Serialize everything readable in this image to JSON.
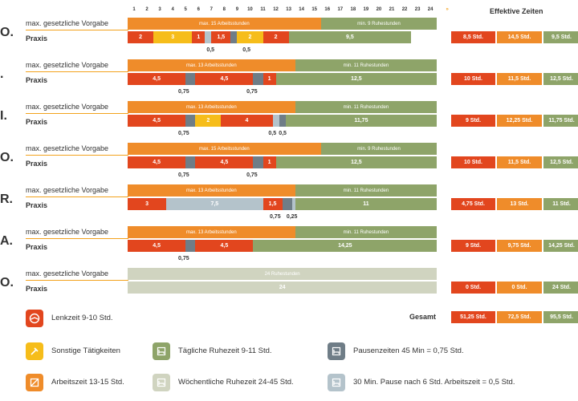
{
  "hours": [
    "1",
    "2",
    "3",
    "4",
    "5",
    "6",
    "7",
    "8",
    "9",
    "10",
    "11",
    "12",
    "13",
    "14",
    "15",
    "16",
    "17",
    "18",
    "19",
    "20",
    "21",
    "22",
    "23",
    "24"
  ],
  "hour_separator": "»",
  "effektive_title": "Effektive Zeiten",
  "label_vorgabe": "max. gesetzliche Vorgabe",
  "label_praxis": "Praxis",
  "days": [
    {
      "abbr": "O.",
      "top": 22,
      "vorgabe": [
        {
          "text": "max. 15 Arbeitsstunden",
          "w": 15,
          "c": "c-org"
        },
        {
          "text": "min. 9 Ruhestunden",
          "w": 9,
          "c": "c-grn"
        }
      ],
      "praxis": [
        {
          "text": "2",
          "w": 2,
          "c": "c-red"
        },
        {
          "text": "3",
          "w": 3,
          "c": "c-yel"
        },
        {
          "text": "1",
          "w": 1,
          "c": "c-red"
        },
        {
          "text": "",
          "w": 0.5,
          "c": "c-lgy"
        },
        {
          "text": "1,5",
          "w": 1.5,
          "c": "c-red"
        },
        {
          "text": "",
          "w": 0.5,
          "c": "c-gry"
        },
        {
          "text": "2",
          "w": 2,
          "c": "c-yel"
        },
        {
          "text": "2",
          "w": 2,
          "c": "c-red"
        },
        {
          "text": "9,5",
          "w": 9.5,
          "c": "c-grn"
        }
      ],
      "pausen": [
        {
          "text": "0,5",
          "at": 6.5
        },
        {
          "text": "0,5",
          "at": 9.3
        }
      ],
      "eff": [
        "8,5 Std.",
        "14,5 Std.",
        "9,5 Std."
      ]
    },
    {
      "abbr": ".",
      "top": 74,
      "vorgabe": [
        {
          "text": "max. 13 Arbeitsstunden",
          "w": 13,
          "c": "c-org"
        },
        {
          "text": "min. 11 Ruhestunden",
          "w": 11,
          "c": "c-grn"
        }
      ],
      "praxis": [
        {
          "text": "4,5",
          "w": 4.5,
          "c": "c-red"
        },
        {
          "text": "",
          "w": 0.75,
          "c": "c-gry"
        },
        {
          "text": "4,5",
          "w": 4.5,
          "c": "c-red"
        },
        {
          "text": "",
          "w": 0.75,
          "c": "c-gry"
        },
        {
          "text": "1",
          "w": 1,
          "c": "c-red"
        },
        {
          "text": "12,5",
          "w": 12.5,
          "c": "c-grn"
        }
      ],
      "pausen": [
        {
          "text": "0,75",
          "at": 4.3
        },
        {
          "text": "0,75",
          "at": 9.6
        }
      ],
      "eff": [
        "10 Std.",
        "11,5 Std.",
        "12,5 Std."
      ]
    },
    {
      "abbr": "I.",
      "top": 126,
      "vorgabe": [
        {
          "text": "max. 13 Arbeitsstunden",
          "w": 13,
          "c": "c-org"
        },
        {
          "text": "min. 11 Ruhestunden",
          "w": 11,
          "c": "c-grn"
        }
      ],
      "praxis": [
        {
          "text": "4,5",
          "w": 4.5,
          "c": "c-red"
        },
        {
          "text": "",
          "w": 0.75,
          "c": "c-gry"
        },
        {
          "text": "2",
          "w": 2,
          "c": "c-yel"
        },
        {
          "text": "4",
          "w": 4,
          "c": "c-red"
        },
        {
          "text": "",
          "w": 0.5,
          "c": "c-lgy"
        },
        {
          "text": "",
          "w": 0.5,
          "c": "c-gry"
        },
        {
          "text": "11,75",
          "w": 11.75,
          "c": "c-grn"
        }
      ],
      "pausen": [
        {
          "text": "0,75",
          "at": 4.3
        },
        {
          "text": "0,5",
          "at": 11.3
        },
        {
          "text": "0,5",
          "at": 12.1
        }
      ],
      "eff": [
        "9 Std.",
        "12,25 Std.",
        "11,75 Std."
      ]
    },
    {
      "abbr": "O.",
      "top": 178,
      "vorgabe": [
        {
          "text": "max. 15 Arbeitsstunden",
          "w": 15,
          "c": "c-org"
        },
        {
          "text": "min. 9 Ruhestunden",
          "w": 9,
          "c": "c-grn"
        }
      ],
      "praxis": [
        {
          "text": "4,5",
          "w": 4.5,
          "c": "c-red"
        },
        {
          "text": "",
          "w": 0.75,
          "c": "c-gry"
        },
        {
          "text": "4,5",
          "w": 4.5,
          "c": "c-red"
        },
        {
          "text": "",
          "w": 0.75,
          "c": "c-gry"
        },
        {
          "text": "1",
          "w": 1,
          "c": "c-red"
        },
        {
          "text": "12,5",
          "w": 12.5,
          "c": "c-grn"
        }
      ],
      "pausen": [
        {
          "text": "0,75",
          "at": 4.3
        },
        {
          "text": "0,75",
          "at": 9.6
        }
      ],
      "eff": [
        "10 Std.",
        "11,5 Std.",
        "12,5 Std."
      ]
    },
    {
      "abbr": "R.",
      "top": 230,
      "vorgabe": [
        {
          "text": "max. 13 Arbeitsstunden",
          "w": 13,
          "c": "c-org"
        },
        {
          "text": "min. 11 Ruhestunden",
          "w": 11,
          "c": "c-grn"
        }
      ],
      "praxis": [
        {
          "text": "3",
          "w": 3,
          "c": "c-red"
        },
        {
          "text": "7,5",
          "w": 7.5,
          "c": "c-lgy"
        },
        {
          "text": "1,5",
          "w": 1.5,
          "c": "c-red"
        },
        {
          "text": "",
          "w": 0.75,
          "c": "c-gry"
        },
        {
          "text": "",
          "w": 0.25,
          "c": "c-lgy"
        },
        {
          "text": "11",
          "w": 11,
          "c": "c-grn"
        }
      ],
      "pausen": [
        {
          "text": "0,75",
          "at": 11.4
        },
        {
          "text": "0,25",
          "at": 12.7
        }
      ],
      "eff": [
        "4,75 Std.",
        "13 Std.",
        "11 Std."
      ]
    },
    {
      "abbr": "A.",
      "top": 282,
      "vorgabe": [
        {
          "text": "max. 13 Arbeitsstunden",
          "w": 13,
          "c": "c-org"
        },
        {
          "text": "min. 11 Ruhestunden",
          "w": 11,
          "c": "c-grn"
        }
      ],
      "praxis": [
        {
          "text": "4,5",
          "w": 4.5,
          "c": "c-red"
        },
        {
          "text": "",
          "w": 0.75,
          "c": "c-gry"
        },
        {
          "text": "4,5",
          "w": 4.5,
          "c": "c-red"
        },
        {
          "text": "14,25",
          "w": 14.25,
          "c": "c-grn"
        }
      ],
      "pausen": [
        {
          "text": "0,75",
          "at": 4.3
        }
      ],
      "eff": [
        "9 Std.",
        "9,75 Std.",
        "14,25 Std."
      ]
    },
    {
      "abbr": "O.",
      "top": 334,
      "vorgabe": [
        {
          "text": "24 Ruhestunden",
          "w": 24,
          "c": "c-wk"
        }
      ],
      "praxis": [
        {
          "text": "24",
          "w": 24,
          "c": "c-wk"
        }
      ],
      "pausen": [],
      "eff": [
        "0 Std.",
        "0 Std.",
        "24 Std."
      ]
    }
  ],
  "gesamt_label": "Gesamt",
  "gesamt": [
    "51,25 Std.",
    "72,5 Std.",
    "95,5 Std."
  ],
  "legend": [
    {
      "label": "Lenkzeit 9-10 Std.",
      "icon": "steering-wheel-icon",
      "color": "#e2461e"
    },
    {
      "label": "Sonstige Tätigkeiten",
      "icon": "hammer-icon",
      "color": "#f6bd1a"
    },
    {
      "label": "Arbeitszeit 13-15 Std.",
      "icon": "crossed-box-icon",
      "color": "#ef8c2a"
    },
    {
      "label": "Tägliche Ruhezeit 9-11 Std.",
      "icon": "bed-icon",
      "color": "#8ea469"
    },
    {
      "label": "Wöchentliche Ruhezeit 24-45 Std.",
      "icon": "bed-icon",
      "color": "#d0d4c0"
    },
    {
      "label": "Pausenzeiten 45 Min = 0,75 Std.",
      "icon": "bed-icon",
      "color": "#6f7d87"
    },
    {
      "label": "30 Min. Pause nach 6 Std. Arbeitszeit = 0,5 Std.",
      "icon": "bed-icon",
      "color": "#b4c3cb"
    }
  ]
}
